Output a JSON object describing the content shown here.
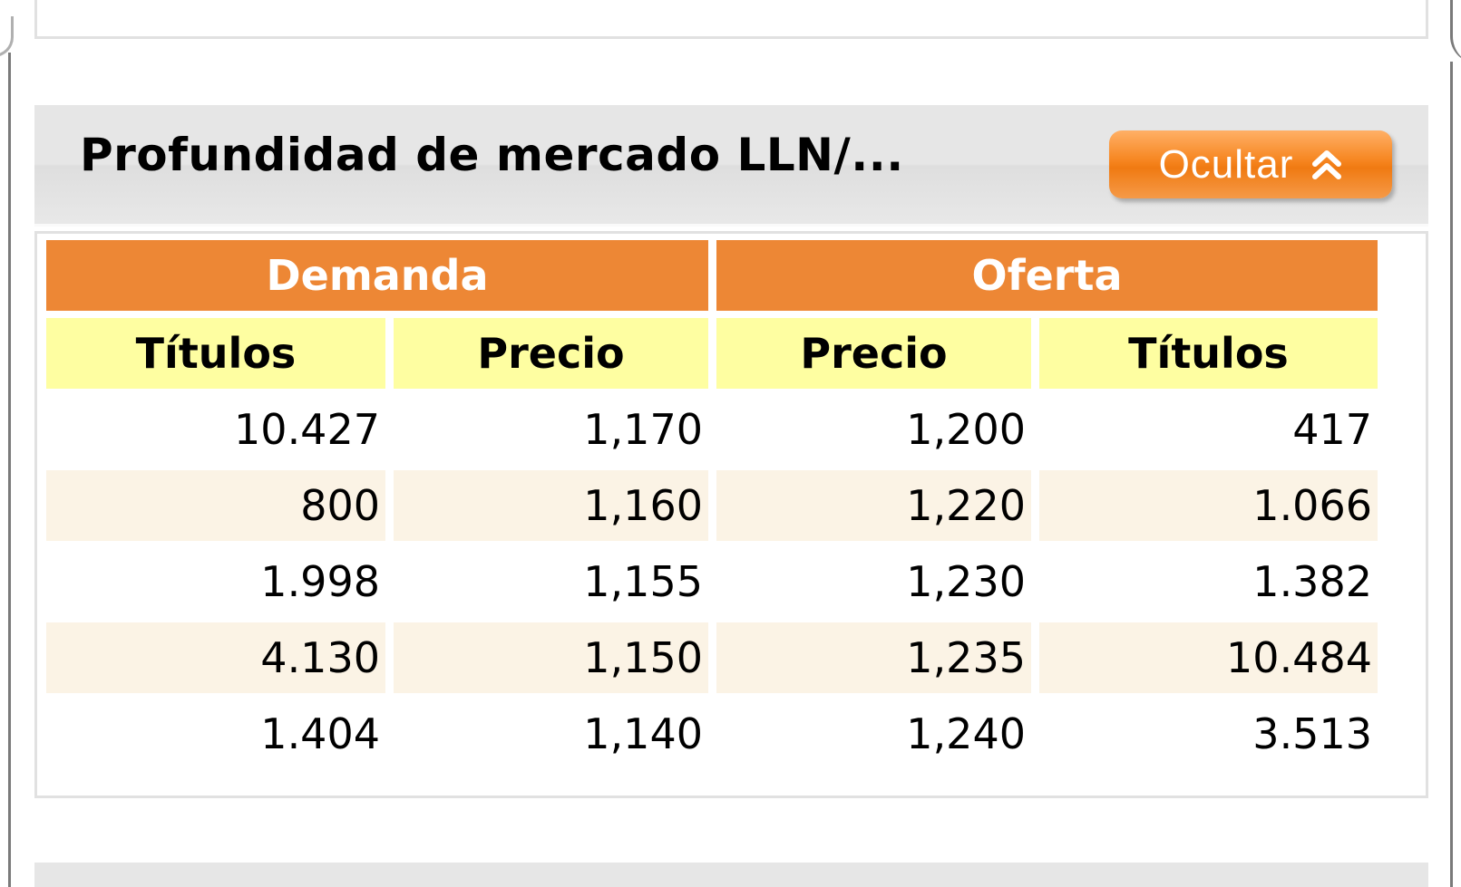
{
  "panel": {
    "title": "Profundidad de mercado LLN/...",
    "hide_button_label": "Ocultar",
    "hide_button_icon": "double-chevron-up-icon"
  },
  "table": {
    "groups": [
      "Demanda",
      "Oferta"
    ],
    "columns": [
      "Títulos",
      "Precio",
      "Precio",
      "Títulos"
    ],
    "rows": [
      [
        "10.427",
        "1,170",
        "1,200",
        "417"
      ],
      [
        "800",
        "1,160",
        "1,220",
        "1.066"
      ],
      [
        "1.998",
        "1,155",
        "1,230",
        "1.382"
      ],
      [
        "4.130",
        "1,150",
        "1,235",
        "10.484"
      ],
      [
        "1.404",
        "1,140",
        "1,240",
        "3.513"
      ]
    ]
  },
  "colors": {
    "group_header": "#ed8735",
    "column_header": "#fefea1",
    "alt_row": "#fbf3e5",
    "button": "#f6851f"
  }
}
